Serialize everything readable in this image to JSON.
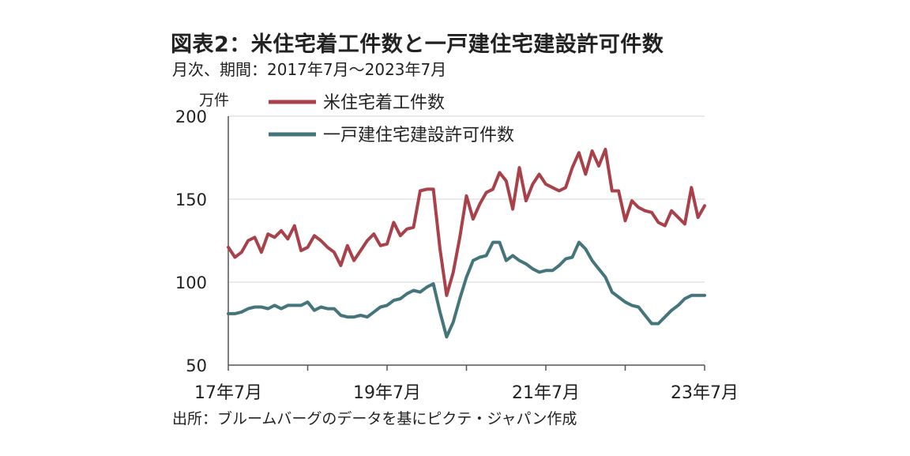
{
  "chart_data": {
    "type": "line",
    "title": "図表2：米住宅着工件数と一戸建住宅建設許可件数",
    "subtitle": "月次、期間：2017年7月～2023年7月",
    "ylabel": "万件",
    "ylim": [
      50,
      200
    ],
    "yticks": [
      50,
      100,
      150,
      200
    ],
    "xticks": [
      {
        "index": 0,
        "label": "17年7月"
      },
      {
        "index": 24,
        "label": "19年7月"
      },
      {
        "index": 48,
        "label": "21年7月"
      },
      {
        "index": 72,
        "label": "23年7月"
      }
    ],
    "x_start": "2017-07",
    "x_end": "2023-07",
    "grid": "horizontal",
    "legend_position": "top-left",
    "series": [
      {
        "name": "米住宅着工件数",
        "color": "#a8414a",
        "values": [
          121,
          115,
          118,
          125,
          127,
          118,
          129,
          127,
          131,
          126,
          134,
          119,
          121,
          128,
          125,
          121,
          118,
          110,
          122,
          113,
          119,
          125,
          129,
          122,
          123,
          136,
          128,
          132,
          133,
          155,
          156,
          156,
          120,
          92,
          106,
          127,
          152,
          138,
          147,
          154,
          156,
          166,
          161,
          144,
          169,
          149,
          159,
          165,
          159,
          157,
          155,
          157,
          169,
          178,
          165,
          179,
          170,
          180,
          155,
          155,
          137,
          149,
          145,
          143,
          142,
          136,
          134,
          143,
          139,
          135,
          157,
          139,
          146
        ]
      },
      {
        "name": "一戸建住宅建設許可件数",
        "color": "#44757a",
        "values": [
          81,
          81,
          82,
          84,
          85,
          85,
          84,
          86,
          84,
          86,
          86,
          86,
          88,
          83,
          85,
          84,
          84,
          80,
          79,
          79,
          80,
          79,
          82,
          85,
          86,
          89,
          90,
          93,
          95,
          94,
          97,
          99,
          82,
          67,
          76,
          90,
          103,
          113,
          115,
          116,
          124,
          124,
          113,
          116,
          113,
          111,
          108,
          106,
          107,
          107,
          110,
          114,
          115,
          124,
          120,
          113,
          108,
          103,
          94,
          91,
          88,
          86,
          85,
          80,
          75,
          75,
          79,
          83,
          86,
          90,
          92,
          92,
          92
        ]
      }
    ]
  },
  "source": "出所：ブルームバーグのデータを基にピクテ・ジャパン作成"
}
